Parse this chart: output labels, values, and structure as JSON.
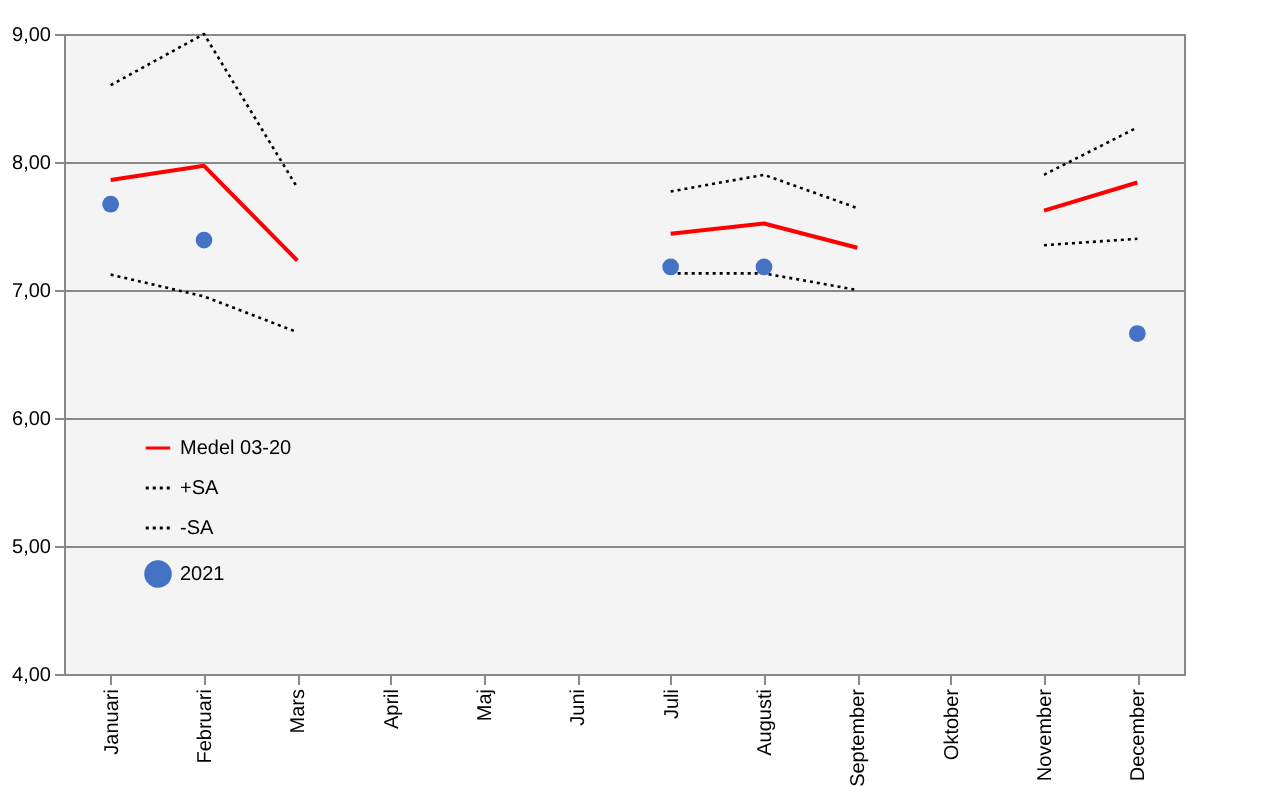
{
  "chart_data": {
    "type": "line",
    "categories": [
      "Januari",
      "Februari",
      "Mars",
      "April",
      "Maj",
      "Juni",
      "Juli",
      "Augusti",
      "September",
      "Oktober",
      "November",
      "December"
    ],
    "series": [
      {
        "name": "Medel 03-20",
        "color": "#ff0000",
        "line_style": "solid",
        "values": [
          7.86,
          7.97,
          7.23,
          null,
          null,
          null,
          7.44,
          7.52,
          7.33,
          null,
          7.62,
          7.84
        ]
      },
      {
        "name": "+SA",
        "color": "#000000",
        "line_style": "dotted",
        "values": [
          8.6,
          9.0,
          7.8,
          null,
          null,
          null,
          7.77,
          7.9,
          7.64,
          null,
          7.9,
          8.27
        ]
      },
      {
        "name": "-SA",
        "color": "#000000",
        "line_style": "dotted",
        "values": [
          7.12,
          6.95,
          6.67,
          null,
          null,
          null,
          7.13,
          7.13,
          7.0,
          null,
          7.35,
          7.4
        ]
      },
      {
        "name": "2021",
        "type": "scatter",
        "marker": "circle",
        "color": "#4472c4",
        "values": [
          7.67,
          7.39,
          null,
          null,
          null,
          null,
          7.18,
          7.18,
          null,
          null,
          null,
          6.66
        ]
      }
    ],
    "ylim": [
      4,
      9
    ],
    "yticks": [
      {
        "value": 4,
        "label": "4,00"
      },
      {
        "value": 5,
        "label": "5,00"
      },
      {
        "value": 6,
        "label": "6,00"
      },
      {
        "value": 7,
        "label": "7,00"
      },
      {
        "value": 8,
        "label": "8,00"
      },
      {
        "value": 9,
        "label": "9,00"
      }
    ],
    "grid": "y",
    "legend": "bottom left"
  }
}
